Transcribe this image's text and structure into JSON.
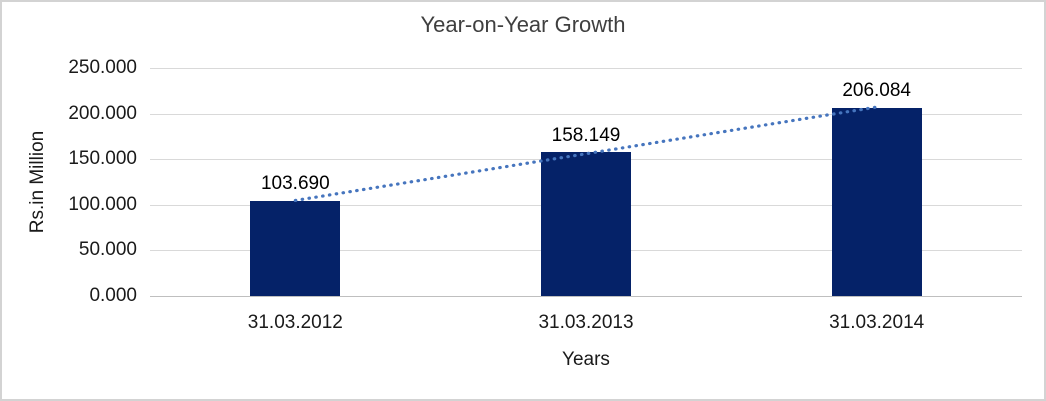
{
  "chart_data": {
    "type": "bar",
    "title": "Year-on-Year Growth",
    "xlabel": "Years",
    "ylabel": "Rs.in Million",
    "categories": [
      "31.03.2012",
      "31.03.2013",
      "31.03.2014"
    ],
    "values": [
      103.69,
      158.149,
      206.084
    ],
    "value_labels": [
      "103.690",
      "158.149",
      "206.084"
    ],
    "ylim": [
      0,
      250
    ],
    "ytick_step": 50,
    "ytick_labels": [
      "0.000",
      "50.000",
      "100.000",
      "150.000",
      "200.000",
      "250.000"
    ],
    "grid": true,
    "legend": "none",
    "trendline": {
      "type": "linear",
      "style": "dotted"
    },
    "colors": {
      "bar": "#052268",
      "trendline": "#4675BE",
      "gridline": "#D9D9D9",
      "axis_line": "#BFBFBF",
      "frame_border": "#D3D3D3",
      "title_text": "#3F3F3F",
      "label_text": "#000000"
    }
  }
}
